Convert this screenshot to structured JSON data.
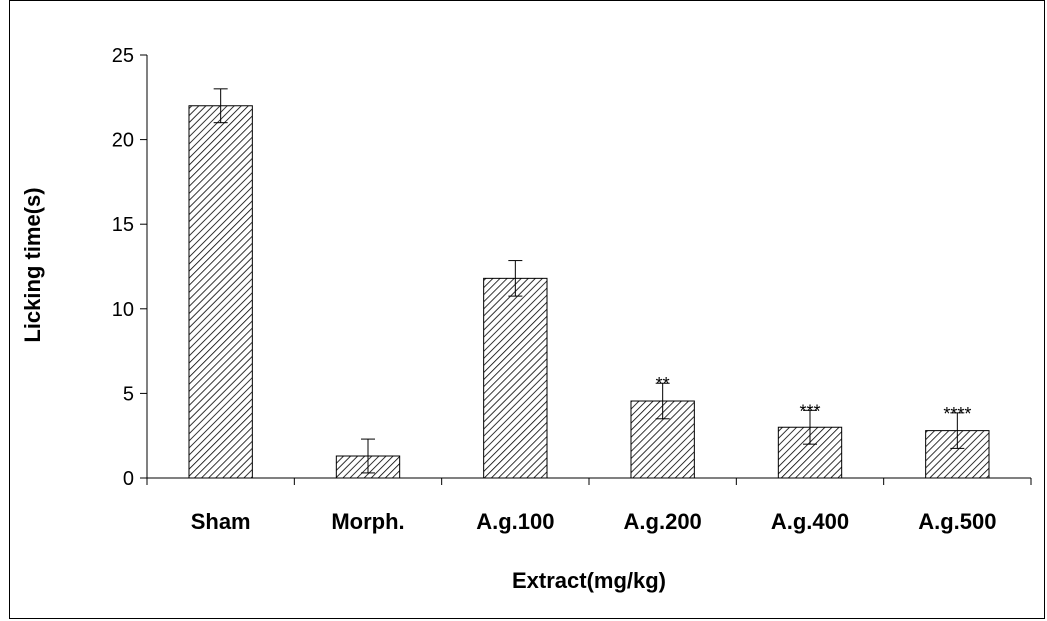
{
  "chart_data": {
    "type": "bar",
    "title": "",
    "xlabel": "Extract(mg/kg)",
    "ylabel": "Licking time(s)",
    "categories": [
      "Sham",
      "Morph.",
      "A.g.100",
      "A.g.200",
      "A.g.400",
      "A.g.500"
    ],
    "values": [
      22.0,
      1.3,
      11.8,
      4.55,
      3.0,
      2.8
    ],
    "errors": [
      1.0,
      1.0,
      1.05,
      1.05,
      1.0,
      1.05
    ],
    "annotations": [
      "",
      "",
      "",
      "**",
      "***",
      "****"
    ],
    "ylim": [
      0,
      25
    ],
    "yticks": [
      0,
      5,
      10,
      15,
      20,
      25
    ],
    "ytick_labels": [
      "0",
      "5",
      "10",
      "15",
      "20",
      "25"
    ],
    "grid": false,
    "bar_pattern": "diagonal-hatch",
    "colors": {
      "bar_fill": "#ffffff",
      "hatch": "#000000",
      "axis": "#000000"
    }
  }
}
